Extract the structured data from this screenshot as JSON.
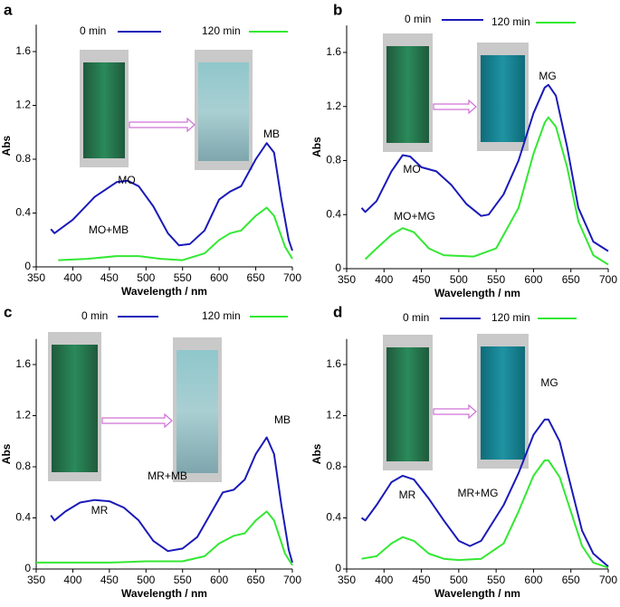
{
  "chart_data": [
    {
      "type": "line",
      "panel_label": "a",
      "xlabel": "Wavelength / nm",
      "ylabel": "Abs",
      "xlim": [
        350,
        700
      ],
      "ylim": [
        0,
        1.8
      ],
      "xticks": [
        350,
        400,
        450,
        500,
        550,
        600,
        650,
        700
      ],
      "yticks": [
        0,
        0.4,
        0.8,
        1.2,
        1.6
      ],
      "annotations": [
        "MO",
        "MB",
        "MO+MB"
      ],
      "series": [
        {
          "name": "0 min",
          "color": "#1a1ab8",
          "x": [
            370,
            375,
            400,
            430,
            460,
            475,
            490,
            510,
            530,
            545,
            560,
            580,
            600,
            615,
            630,
            650,
            665,
            675,
            685,
            695,
            700
          ],
          "values": [
            0.28,
            0.25,
            0.35,
            0.52,
            0.63,
            0.64,
            0.6,
            0.45,
            0.25,
            0.16,
            0.17,
            0.27,
            0.5,
            0.56,
            0.6,
            0.8,
            0.92,
            0.85,
            0.5,
            0.2,
            0.12
          ]
        },
        {
          "name": "120 min",
          "color": "#33e833",
          "x": [
            380,
            420,
            460,
            490,
            520,
            550,
            580,
            600,
            615,
            630,
            650,
            665,
            675,
            690,
            700
          ],
          "values": [
            0.05,
            0.06,
            0.08,
            0.08,
            0.06,
            0.05,
            0.1,
            0.2,
            0.25,
            0.27,
            0.38,
            0.44,
            0.38,
            0.15,
            0.06
          ]
        }
      ]
    },
    {
      "type": "line",
      "panel_label": "b",
      "xlabel": "Wavelength / nm",
      "ylabel": "Abs",
      "xlim": [
        350,
        700
      ],
      "ylim": [
        0,
        1.8
      ],
      "xticks": [
        350,
        400,
        450,
        500,
        550,
        600,
        650,
        700
      ],
      "yticks": [
        0,
        0.4,
        0.8,
        1.2,
        1.6
      ],
      "annotations": [
        "MO",
        "MG",
        "MO+MG"
      ],
      "series": [
        {
          "name": "0 min",
          "color": "#1a1ab8",
          "x": [
            370,
            375,
            390,
            410,
            425,
            435,
            450,
            470,
            490,
            510,
            530,
            540,
            560,
            580,
            600,
            615,
            620,
            630,
            645,
            660,
            680,
            700
          ],
          "values": [
            0.45,
            0.42,
            0.5,
            0.72,
            0.84,
            0.83,
            0.75,
            0.72,
            0.62,
            0.48,
            0.39,
            0.4,
            0.55,
            0.8,
            1.15,
            1.34,
            1.36,
            1.28,
            0.9,
            0.45,
            0.2,
            0.13
          ]
        },
        {
          "name": "120 min",
          "color": "#33e833",
          "x": [
            375,
            390,
            410,
            425,
            440,
            460,
            480,
            520,
            550,
            580,
            600,
            615,
            620,
            630,
            645,
            660,
            680,
            700
          ],
          "values": [
            0.07,
            0.15,
            0.25,
            0.3,
            0.27,
            0.15,
            0.1,
            0.09,
            0.15,
            0.45,
            0.85,
            1.08,
            1.12,
            1.05,
            0.75,
            0.35,
            0.1,
            0.03
          ]
        }
      ]
    },
    {
      "type": "line",
      "panel_label": "c",
      "xlabel": "Wavelength / nm",
      "ylabel": "Abs",
      "xlim": [
        350,
        700
      ],
      "ylim": [
        0,
        1.8
      ],
      "xticks": [
        350,
        400,
        450,
        500,
        550,
        600,
        650,
        700
      ],
      "yticks": [
        0,
        0.4,
        0.8,
        1.2,
        1.6
      ],
      "annotations": [
        "MR",
        "MR+MB",
        "MB"
      ],
      "series": [
        {
          "name": "0 min",
          "color": "#1a1ab8",
          "x": [
            370,
            375,
            390,
            410,
            430,
            450,
            470,
            490,
            510,
            530,
            550,
            570,
            590,
            605,
            620,
            635,
            650,
            665,
            675,
            685,
            695,
            700
          ],
          "values": [
            0.42,
            0.38,
            0.45,
            0.52,
            0.54,
            0.53,
            0.48,
            0.38,
            0.22,
            0.14,
            0.16,
            0.25,
            0.45,
            0.6,
            0.62,
            0.7,
            0.9,
            1.03,
            0.9,
            0.5,
            0.15,
            0.05
          ]
        },
        {
          "name": "120 min",
          "color": "#33e833",
          "x": [
            350,
            400,
            450,
            500,
            550,
            580,
            600,
            620,
            635,
            650,
            665,
            675,
            690,
            700
          ],
          "values": [
            0.05,
            0.05,
            0.05,
            0.06,
            0.06,
            0.1,
            0.2,
            0.26,
            0.28,
            0.38,
            0.45,
            0.38,
            0.12,
            0.03
          ]
        }
      ]
    },
    {
      "type": "line",
      "panel_label": "d",
      "xlabel": "Wavelength / nm",
      "ylabel": "Abs",
      "xlim": [
        350,
        700
      ],
      "ylim": [
        0,
        1.8
      ],
      "xticks": [
        350,
        400,
        450,
        500,
        550,
        600,
        650,
        700
      ],
      "yticks": [
        0,
        0.4,
        0.8,
        1.2,
        1.6
      ],
      "annotations": [
        "MR",
        "MR+MG",
        "MG"
      ],
      "series": [
        {
          "name": "0 min",
          "color": "#1a1ab8",
          "x": [
            370,
            375,
            390,
            410,
            425,
            440,
            460,
            480,
            500,
            515,
            530,
            560,
            580,
            600,
            615,
            620,
            635,
            650,
            665,
            680,
            700
          ],
          "values": [
            0.4,
            0.38,
            0.5,
            0.68,
            0.73,
            0.7,
            0.55,
            0.38,
            0.22,
            0.18,
            0.22,
            0.5,
            0.75,
            1.05,
            1.17,
            1.17,
            1.0,
            0.65,
            0.3,
            0.12,
            0.02
          ]
        },
        {
          "name": "120 min",
          "color": "#33e833",
          "x": [
            370,
            390,
            410,
            425,
            440,
            460,
            480,
            500,
            530,
            560,
            580,
            600,
            615,
            620,
            635,
            650,
            665,
            680,
            700
          ],
          "values": [
            0.08,
            0.1,
            0.2,
            0.25,
            0.22,
            0.12,
            0.08,
            0.07,
            0.08,
            0.2,
            0.45,
            0.73,
            0.85,
            0.85,
            0.72,
            0.45,
            0.18,
            0.05,
            0.01
          ]
        }
      ]
    }
  ]
}
